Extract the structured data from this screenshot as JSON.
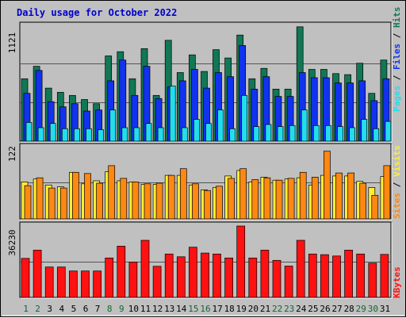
{
  "title": "Daily usage for October 2022",
  "colors": {
    "hits": "#117755",
    "files": "#1133ee",
    "pages": "#22ddee",
    "visits": "#ffee33",
    "sites": "#ff8811",
    "kbytes": "#ff1111",
    "background": "#c0c0c0",
    "plot_bg": "#c0c0c0",
    "gridline": "#000000",
    "title": "#0000cc",
    "weekday_label": "#000000",
    "weekend_label": "#116633"
  },
  "legends": {
    "top": [
      {
        "text": "Pages",
        "color": "#22ddee"
      },
      {
        "text": " / ",
        "color": "#000000"
      },
      {
        "text": "Files",
        "color": "#1133ee"
      },
      {
        "text": " / ",
        "color": "#000000"
      },
      {
        "text": "Hits",
        "color": "#117755"
      }
    ],
    "middle": [
      {
        "text": "Sites",
        "color": "#ff8811"
      },
      {
        "text": " / ",
        "color": "#000000"
      },
      {
        "text": "Visits",
        "color": "#ffee33"
      }
    ],
    "bottom": [
      {
        "text": "KBytes",
        "color": "#ff1111"
      }
    ]
  },
  "chart_data": [
    {
      "type": "bar",
      "title": "Daily usage for October 2022",
      "ymax_label": "1121",
      "ylim": [
        0,
        1121
      ],
      "categories": [
        "1",
        "2",
        "3",
        "4",
        "5",
        "6",
        "7",
        "8",
        "9",
        "10",
        "11",
        "12",
        "13",
        "14",
        "15",
        "16",
        "17",
        "18",
        "19",
        "20",
        "21",
        "22",
        "23",
        "24",
        "25",
        "26",
        "27",
        "28",
        "29",
        "30",
        "31"
      ],
      "weekend_days": [
        "1",
        "2",
        "8",
        "9",
        "15",
        "16",
        "22",
        "23",
        "29",
        "30"
      ],
      "series": [
        {
          "name": "Hits",
          "values": [
            600,
            720,
            510,
            470,
            440,
            400,
            360,
            820,
            860,
            600,
            890,
            440,
            970,
            660,
            830,
            670,
            880,
            800,
            1020,
            600,
            700,
            500,
            500,
            1100,
            690,
            690,
            650,
            640,
            750,
            460,
            780
          ]
        },
        {
          "name": "Files",
          "values": [
            460,
            680,
            380,
            330,
            360,
            290,
            300,
            580,
            780,
            440,
            720,
            410,
            520,
            580,
            690,
            510,
            660,
            620,
            920,
            500,
            620,
            430,
            430,
            660,
            610,
            610,
            560,
            560,
            580,
            390,
            600
          ]
        },
        {
          "name": "Pages",
          "values": [
            180,
            130,
            170,
            120,
            120,
            120,
            110,
            300,
            130,
            130,
            170,
            130,
            530,
            130,
            210,
            170,
            300,
            120,
            440,
            140,
            160,
            140,
            150,
            300,
            150,
            150,
            140,
            130,
            210,
            120,
            190
          ]
        }
      ]
    },
    {
      "type": "bar",
      "ymax_label": "122",
      "ylim": [
        0,
        122
      ],
      "categories": [
        "1",
        "2",
        "3",
        "4",
        "5",
        "6",
        "7",
        "8",
        "9",
        "10",
        "11",
        "12",
        "13",
        "14",
        "15",
        "16",
        "17",
        "18",
        "19",
        "20",
        "21",
        "22",
        "23",
        "24",
        "25",
        "26",
        "27",
        "28",
        "29",
        "30",
        "31"
      ],
      "series": [
        {
          "name": "Visits",
          "values": [
            61,
            66,
            56,
            53,
            77,
            58,
            63,
            78,
            63,
            61,
            57,
            57,
            72,
            72,
            56,
            48,
            52,
            71,
            80,
            61,
            69,
            64,
            66,
            68,
            56,
            72,
            71,
            71,
            62,
            52,
            70
          ]
        },
        {
          "name": "Sites",
          "values": [
            55,
            68,
            51,
            51,
            77,
            75,
            59,
            88,
            67,
            61,
            58,
            59,
            72,
            83,
            58,
            47,
            54,
            67,
            83,
            65,
            68,
            64,
            67,
            77,
            69,
            112,
            76,
            76,
            59,
            39,
            88
          ]
        }
      ]
    },
    {
      "type": "bar",
      "ymax_label": "36230",
      "ylim": [
        0,
        36230
      ],
      "categories": [
        "1",
        "2",
        "3",
        "4",
        "5",
        "6",
        "7",
        "8",
        "9",
        "10",
        "11",
        "12",
        "13",
        "14",
        "15",
        "16",
        "17",
        "18",
        "19",
        "20",
        "21",
        "22",
        "23",
        "24",
        "25",
        "26",
        "27",
        "28",
        "29",
        "30",
        "31"
      ],
      "series": [
        {
          "name": "KBytes",
          "values": [
            19800,
            24000,
            15400,
            15400,
            13400,
            13400,
            13400,
            20000,
            26000,
            17900,
            29000,
            15800,
            22000,
            20600,
            25500,
            22500,
            22000,
            20000,
            36230,
            20000,
            24000,
            18800,
            15900,
            29000,
            22000,
            21700,
            21000,
            24000,
            22000,
            17400,
            21800
          ]
        }
      ]
    }
  ]
}
